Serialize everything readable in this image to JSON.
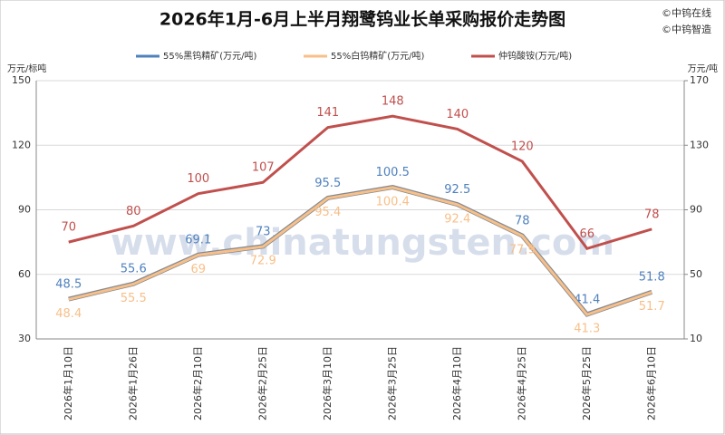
{
  "chart_data": {
    "type": "line",
    "title": "2026年1月-6月上半月翔鹭钨业长单采购报价走势图",
    "credits": [
      "©中钨在线",
      "©中钨智造"
    ],
    "watermark": "www.chinatungsten.com",
    "y_label": "万元/标吨",
    "y2_label": "万元/吨",
    "categories": [
      "2026年1月10日",
      "2026年1月26日",
      "2026年2月10日",
      "2026年2月25日",
      "2026年3月10日",
      "2026年3月25日",
      "2026年4月10日",
      "2026年4月25日",
      "2026年5月25日",
      "2026年6月10日"
    ],
    "series": [
      {
        "name": "55%黑钨精矿(万元/吨)",
        "color": "#4f81bd",
        "values": [
          48.5,
          55.6,
          69.1,
          73,
          95.5,
          100.5,
          92.5,
          78,
          41.4,
          51.8
        ]
      },
      {
        "name": "55%白钨精矿(万元/吨)",
        "color": "#f8bf88",
        "values": [
          48.4,
          55.5,
          69,
          72.9,
          95.4,
          100.4,
          92.4,
          77.9,
          41.3,
          51.7
        ]
      },
      {
        "name": "仲钨酸铵(万元/吨)",
        "color": "#c0504d",
        "axis": "y2",
        "values": [
          70,
          80,
          100,
          107,
          141,
          148,
          140,
          120,
          66,
          78
        ]
      }
    ],
    "ylim": [
      30,
      150
    ],
    "yticks": [
      30,
      60,
      90,
      120,
      150
    ],
    "y2lim": [
      10,
      170
    ],
    "y2ticks": [
      10,
      50,
      90,
      130,
      170
    ],
    "grid": true
  }
}
